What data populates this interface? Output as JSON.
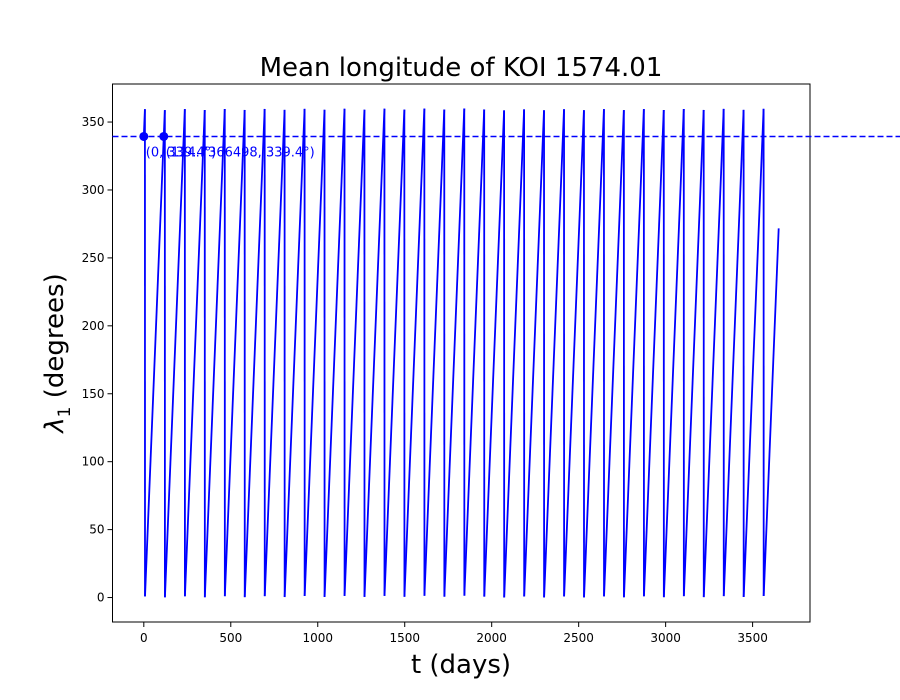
{
  "chart_data": {
    "type": "line",
    "title": "Mean longitude of KOI 1574.01",
    "xlabel": "t (days)",
    "ylabel_symbol": "λ",
    "ylabel_subscript": "1",
    "ylabel_rest": " (degrees)",
    "xlim": [
      -180,
      3830
    ],
    "ylim": [
      -18,
      378
    ],
    "xticks": [
      0,
      500,
      1000,
      1500,
      2000,
      2500,
      3000,
      3500
    ],
    "yticks": [
      0,
      50,
      100,
      150,
      200,
      250,
      300,
      350
    ],
    "grid": false,
    "series": [
      {
        "color": "#0000ff",
        "period_days": 114.7366498,
        "initial_longitude_deg": 339.4,
        "t_start": 0,
        "t_end": 3650
      }
    ],
    "reference_line": {
      "y": 339.4,
      "style": "dashed",
      "color": "#0000ff"
    },
    "markers": [
      {
        "x": 0,
        "y": 339.4
      },
      {
        "x": 114.7366498,
        "y": 339.4
      }
    ],
    "annotations": [
      {
        "text": "(0, 339.4°)",
        "x": 0,
        "y": 339.4
      },
      {
        "text": "(114.7366498, 339.4°)",
        "x": 114.7366498,
        "y": 339.4
      }
    ]
  }
}
